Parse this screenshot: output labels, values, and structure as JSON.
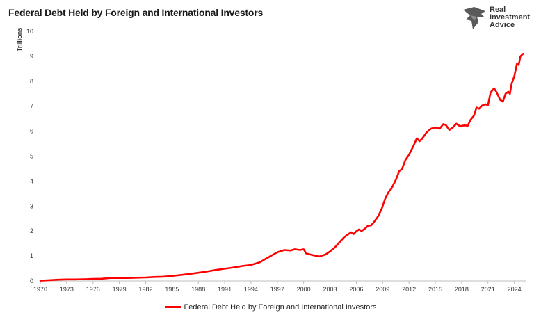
{
  "chart_data": {
    "type": "line",
    "title": "Federal Debt Held by Foreign and International Investors",
    "ylabel": "Trillions",
    "xlabel": "",
    "xlim": [
      1970,
      2025.3
    ],
    "ylim": [
      0,
      10
    ],
    "x_ticks": [
      "1970",
      "1973",
      "1976",
      "1979",
      "1982",
      "1985",
      "1988",
      "1991",
      "1994",
      "1997",
      "2000",
      "2003",
      "2006",
      "2009",
      "2012",
      "2015",
      "2018",
      "2021",
      "2024"
    ],
    "y_ticks": [
      "0",
      "1",
      "2",
      "3",
      "4",
      "5",
      "6",
      "7",
      "8",
      "9",
      "10"
    ],
    "grid": false,
    "legend_position": "bottom",
    "series": [
      {
        "name": "Federal Debt Held by Foreign and International Investors",
        "color": "#ff0000",
        "points": [
          [
            1970.0,
            0.01
          ],
          [
            1971.0,
            0.03
          ],
          [
            1972.0,
            0.05
          ],
          [
            1973.0,
            0.06
          ],
          [
            1974.0,
            0.06
          ],
          [
            1975.0,
            0.07
          ],
          [
            1976.0,
            0.08
          ],
          [
            1977.0,
            0.09
          ],
          [
            1978.0,
            0.12
          ],
          [
            1979.0,
            0.12
          ],
          [
            1980.0,
            0.12
          ],
          [
            1981.0,
            0.13
          ],
          [
            1982.0,
            0.14
          ],
          [
            1983.0,
            0.16
          ],
          [
            1984.0,
            0.17
          ],
          [
            1985.0,
            0.2
          ],
          [
            1986.0,
            0.24
          ],
          [
            1987.0,
            0.28
          ],
          [
            1988.0,
            0.33
          ],
          [
            1989.0,
            0.38
          ],
          [
            1990.0,
            0.44
          ],
          [
            1991.0,
            0.49
          ],
          [
            1992.0,
            0.54
          ],
          [
            1993.0,
            0.6
          ],
          [
            1994.0,
            0.64
          ],
          [
            1995.0,
            0.75
          ],
          [
            1996.0,
            0.95
          ],
          [
            1997.0,
            1.15
          ],
          [
            1997.8,
            1.24
          ],
          [
            1998.5,
            1.22
          ],
          [
            1999.0,
            1.27
          ],
          [
            1999.6,
            1.24
          ],
          [
            2000.0,
            1.27
          ],
          [
            2000.3,
            1.1
          ],
          [
            2001.0,
            1.04
          ],
          [
            2001.8,
            0.98
          ],
          [
            2002.5,
            1.06
          ],
          [
            2003.0,
            1.18
          ],
          [
            2003.6,
            1.36
          ],
          [
            2004.0,
            1.52
          ],
          [
            2004.6,
            1.75
          ],
          [
            2005.0,
            1.85
          ],
          [
            2005.4,
            1.95
          ],
          [
            2005.7,
            1.88
          ],
          [
            2006.0,
            1.99
          ],
          [
            2006.3,
            2.06
          ],
          [
            2006.6,
            2.0
          ],
          [
            2007.0,
            2.1
          ],
          [
            2007.3,
            2.2
          ],
          [
            2007.7,
            2.23
          ],
          [
            2008.0,
            2.35
          ],
          [
            2008.5,
            2.6
          ],
          [
            2008.9,
            2.9
          ],
          [
            2009.3,
            3.3
          ],
          [
            2009.7,
            3.58
          ],
          [
            2010.0,
            3.7
          ],
          [
            2010.5,
            4.05
          ],
          [
            2010.9,
            4.4
          ],
          [
            2011.2,
            4.48
          ],
          [
            2011.6,
            4.85
          ],
          [
            2012.0,
            5.05
          ],
          [
            2012.5,
            5.4
          ],
          [
            2012.9,
            5.72
          ],
          [
            2013.2,
            5.6
          ],
          [
            2013.5,
            5.7
          ],
          [
            2014.0,
            5.95
          ],
          [
            2014.5,
            6.1
          ],
          [
            2015.0,
            6.15
          ],
          [
            2015.5,
            6.1
          ],
          [
            2015.9,
            6.28
          ],
          [
            2016.2,
            6.25
          ],
          [
            2016.6,
            6.05
          ],
          [
            2017.0,
            6.15
          ],
          [
            2017.4,
            6.3
          ],
          [
            2017.8,
            6.2
          ],
          [
            2018.3,
            6.23
          ],
          [
            2018.7,
            6.22
          ],
          [
            2019.0,
            6.45
          ],
          [
            2019.4,
            6.62
          ],
          [
            2019.7,
            6.95
          ],
          [
            2020.0,
            6.9
          ],
          [
            2020.3,
            7.02
          ],
          [
            2020.7,
            7.08
          ],
          [
            2021.0,
            7.04
          ],
          [
            2021.3,
            7.55
          ],
          [
            2021.7,
            7.72
          ],
          [
            2022.0,
            7.55
          ],
          [
            2022.4,
            7.25
          ],
          [
            2022.7,
            7.18
          ],
          [
            2023.0,
            7.5
          ],
          [
            2023.3,
            7.58
          ],
          [
            2023.5,
            7.5
          ],
          [
            2023.7,
            7.9
          ],
          [
            2024.0,
            8.2
          ],
          [
            2024.3,
            8.7
          ],
          [
            2024.5,
            8.65
          ],
          [
            2024.7,
            9.0
          ],
          [
            2025.0,
            9.1
          ]
        ]
      }
    ]
  },
  "logo": {
    "line1": "Real",
    "line2": "Investment",
    "line3": "Advice"
  }
}
